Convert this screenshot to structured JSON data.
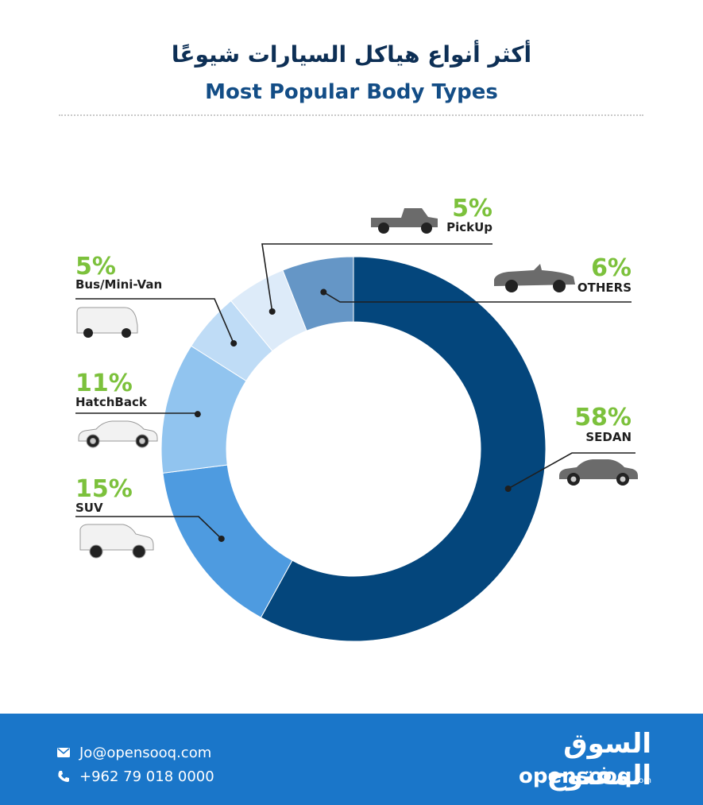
{
  "header": {
    "title_ar": "أكثر أنواع هياكل السيارات شيوعًا",
    "title_en": "Most Popular Body Types"
  },
  "colors": {
    "title": "#0d2f55",
    "subtitle": "#134d86",
    "percent": "#7cc13c",
    "footer": "#1a76c9"
  },
  "chart_data": {
    "type": "pie",
    "donut": true,
    "title": "Most Popular Body Types",
    "categories": [
      "SEDAN",
      "SUV",
      "HatchBack",
      "Bus/Mini-Van",
      "PickUp",
      "OTHERS"
    ],
    "values": [
      58,
      15,
      11,
      5,
      5,
      6
    ],
    "labels": [
      "58%",
      "15%",
      "11%",
      "5%",
      "5%",
      "6%"
    ],
    "colors": [
      "#04467c",
      "#4e9be0",
      "#91c4ef",
      "#bfdcf6",
      "#ddebf9",
      "#6596c6"
    ],
    "icons": [
      "sedan-car-icon",
      "suv-icon",
      "hatchback-icon",
      "van-icon",
      "pickup-truck-icon",
      "convertible-icon"
    ]
  },
  "footer": {
    "email": "Jo@opensooq.com",
    "phone": "+962 79 018 0000",
    "logo_ar": "السوق المفتوح",
    "logo_en": "opensooq",
    "logo_en_suffix": ".com"
  }
}
